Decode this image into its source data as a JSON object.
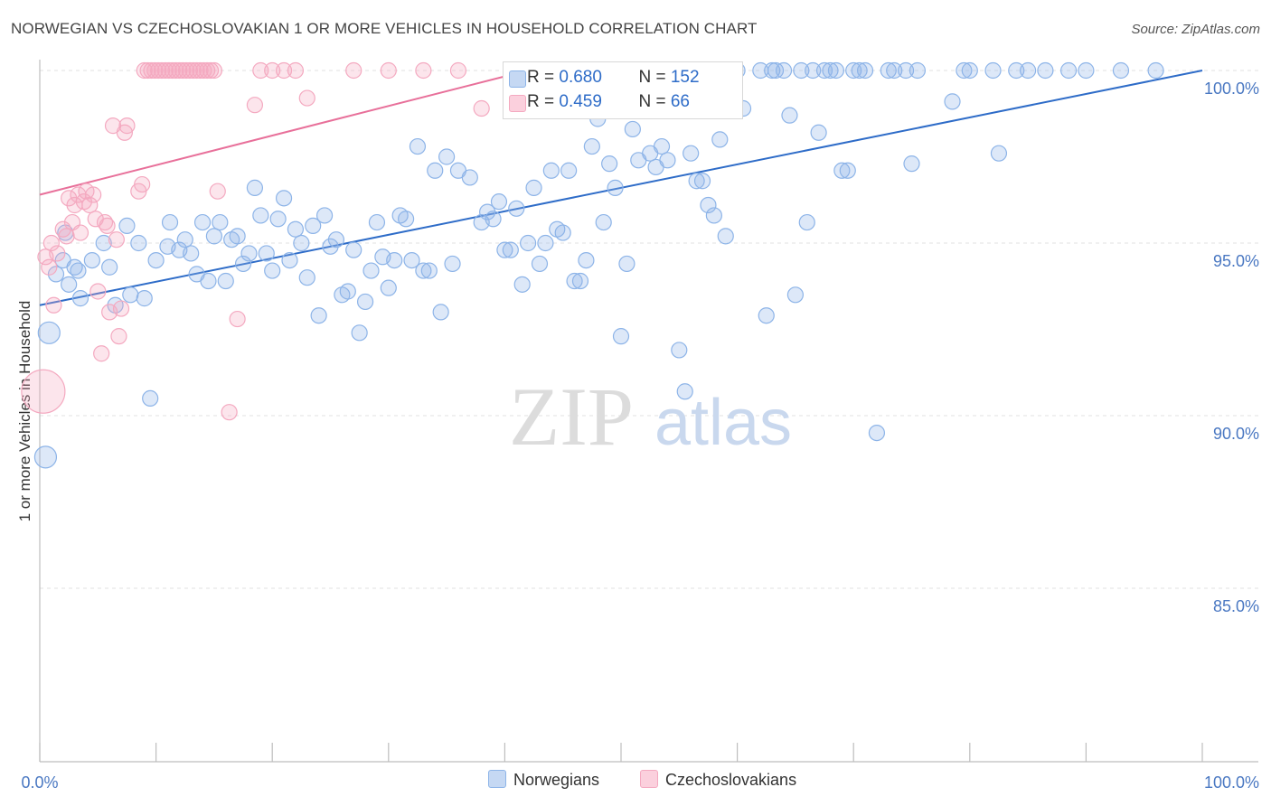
{
  "chart_data": {
    "type": "scatter",
    "title": "NORWEGIAN VS CZECHOSLOVAKIAN 1 OR MORE VEHICLES IN HOUSEHOLD CORRELATION CHART",
    "source": "Source: ZipAtlas.com",
    "xlabel": "",
    "ylabel": "1 or more Vehicles in Household",
    "xlim": [
      0,
      100
    ],
    "ylim": [
      80.5,
      100.8
    ],
    "x_tick_labels": [
      "0.0%",
      "100.0%"
    ],
    "y_ticks": [
      100,
      95,
      90,
      85
    ],
    "y_tick_labels": [
      "100.0%",
      "95.0%",
      "90.0%",
      "85.0%"
    ],
    "watermark": "ZIPatlas",
    "legend": {
      "rows": [
        {
          "r_label": "R = ",
          "r_value": "0.680",
          "n_label": "N = ",
          "n_value": "152"
        },
        {
          "r_label": "R = ",
          "r_value": "0.459",
          "n_label": "N = ",
          "n_value": "66"
        }
      ]
    },
    "series": [
      {
        "name": "Norwegians",
        "color": "#8db4e8",
        "line_color": "#2e6cc8",
        "trend": {
          "x": [
            0,
            100
          ],
          "y": [
            93.2,
            100.0
          ]
        },
        "points": [
          [
            0.5,
            88.8,
            2
          ],
          [
            0.8,
            92.4,
            2
          ],
          [
            1.4,
            94.1,
            1
          ],
          [
            2,
            94.5,
            1
          ],
          [
            2.2,
            95.3,
            1
          ],
          [
            2.5,
            93.8,
            1
          ],
          [
            3,
            94.3,
            1
          ],
          [
            3.3,
            94.2,
            1
          ],
          [
            3.5,
            93.4,
            1
          ],
          [
            4.5,
            94.5,
            1
          ],
          [
            5.5,
            95,
            1
          ],
          [
            6,
            94.3,
            1
          ],
          [
            6.5,
            93.2,
            1
          ],
          [
            7.5,
            95.5,
            1
          ],
          [
            7.8,
            93.5,
            1
          ],
          [
            8.5,
            95,
            1
          ],
          [
            9,
            93.4,
            1
          ],
          [
            9.5,
            90.5,
            1
          ],
          [
            10,
            94.5,
            1
          ],
          [
            11,
            94.9,
            1
          ],
          [
            11.2,
            95.6,
            1
          ],
          [
            12,
            94.8,
            1
          ],
          [
            12.5,
            95.1,
            1
          ],
          [
            13,
            94.7,
            1
          ],
          [
            13.5,
            94.1,
            1
          ],
          [
            14,
            95.6,
            1
          ],
          [
            14.5,
            93.9,
            1
          ],
          [
            15,
            95.2,
            1
          ],
          [
            15.5,
            95.6,
            1
          ],
          [
            16,
            93.9,
            1
          ],
          [
            16.5,
            95.1,
            1
          ],
          [
            17,
            95.2,
            1
          ],
          [
            17.5,
            94.4,
            1
          ],
          [
            18,
            94.7,
            1
          ],
          [
            18.5,
            96.6,
            1
          ],
          [
            19,
            95.8,
            1
          ],
          [
            19.5,
            94.7,
            1
          ],
          [
            20,
            94.2,
            1
          ],
          [
            20.5,
            95.7,
            1
          ],
          [
            21,
            96.3,
            1
          ],
          [
            21.5,
            94.5,
            1
          ],
          [
            22,
            95.4,
            1
          ],
          [
            22.5,
            95,
            1
          ],
          [
            23,
            94,
            1
          ],
          [
            23.5,
            95.5,
            1
          ],
          [
            24,
            92.9,
            1
          ],
          [
            24.5,
            95.8,
            1
          ],
          [
            25,
            94.9,
            1
          ],
          [
            25.5,
            95.1,
            1
          ],
          [
            26,
            93.5,
            1
          ],
          [
            26.5,
            93.6,
            1
          ],
          [
            27,
            94.8,
            1
          ],
          [
            27.5,
            92.4,
            1
          ],
          [
            28,
            93.3,
            1
          ],
          [
            28.5,
            94.2,
            1
          ],
          [
            29,
            95.6,
            1
          ],
          [
            29.5,
            94.6,
            1
          ],
          [
            30,
            93.7,
            1
          ],
          [
            30.5,
            94.5,
            1
          ],
          [
            31,
            95.8,
            1
          ],
          [
            31.5,
            95.7,
            1
          ],
          [
            32,
            94.5,
            1
          ],
          [
            32.5,
            97.8,
            1
          ],
          [
            33,
            94.2,
            1
          ],
          [
            33.5,
            94.2,
            1
          ],
          [
            34,
            97.1,
            1
          ],
          [
            34.5,
            93,
            1
          ],
          [
            35,
            97.5,
            1
          ],
          [
            35.5,
            94.4,
            1
          ],
          [
            36,
            97.1,
            1
          ],
          [
            37,
            96.9,
            1
          ],
          [
            38,
            95.6,
            1
          ],
          [
            38.5,
            95.9,
            1
          ],
          [
            39,
            95.7,
            1
          ],
          [
            39.5,
            96.2,
            1
          ],
          [
            40,
            94.8,
            1
          ],
          [
            40.5,
            94.8,
            1
          ],
          [
            41,
            96,
            1
          ],
          [
            41.5,
            93.8,
            1
          ],
          [
            42,
            95,
            1
          ],
          [
            42.5,
            96.6,
            1
          ],
          [
            43,
            94.4,
            1
          ],
          [
            43.5,
            95,
            1
          ],
          [
            44,
            97.1,
            1
          ],
          [
            44.5,
            95.4,
            1
          ],
          [
            45,
            95.3,
            1
          ],
          [
            45.5,
            97.1,
            1
          ],
          [
            46,
            93.9,
            1
          ],
          [
            46.5,
            93.9,
            1
          ],
          [
            47,
            94.5,
            1
          ],
          [
            47.5,
            97.8,
            1
          ],
          [
            48,
            98.6,
            1
          ],
          [
            48.5,
            95.6,
            1
          ],
          [
            49,
            97.3,
            1
          ],
          [
            49.5,
            96.6,
            1
          ],
          [
            50,
            92.3,
            1
          ],
          [
            50.5,
            94.4,
            1
          ],
          [
            51,
            98.3,
            1
          ],
          [
            51.5,
            97.4,
            1
          ],
          [
            52,
            99.8,
            1
          ],
          [
            52.5,
            97.6,
            1
          ],
          [
            53,
            97.2,
            1
          ],
          [
            53.5,
            97.8,
            1
          ],
          [
            54,
            97.4,
            1
          ],
          [
            55,
            91.9,
            1
          ],
          [
            55.5,
            90.7,
            1
          ],
          [
            56,
            97.6,
            1
          ],
          [
            56.5,
            96.8,
            1
          ],
          [
            57,
            96.8,
            1
          ],
          [
            57.5,
            96.1,
            1
          ],
          [
            58,
            95.8,
            1
          ],
          [
            58.5,
            98,
            1
          ],
          [
            59,
            95.2,
            1
          ],
          [
            60,
            100,
            1
          ],
          [
            60.5,
            98.9,
            1
          ],
          [
            62,
            100,
            1
          ],
          [
            62.5,
            92.9,
            1
          ],
          [
            63,
            100,
            1
          ],
          [
            63.3,
            100,
            1
          ],
          [
            64,
            100,
            1
          ],
          [
            64.5,
            98.7,
            1
          ],
          [
            65,
            93.5,
            1
          ],
          [
            65.5,
            100,
            1
          ],
          [
            66,
            95.6,
            1
          ],
          [
            66.5,
            100,
            1
          ],
          [
            67,
            98.2,
            1
          ],
          [
            67.5,
            100,
            1
          ],
          [
            68,
            100,
            1
          ],
          [
            68.5,
            100,
            1
          ],
          [
            69,
            97.1,
            1
          ],
          [
            69.5,
            97.1,
            1
          ],
          [
            70,
            100,
            1
          ],
          [
            70.5,
            100,
            1
          ],
          [
            71,
            100,
            1
          ],
          [
            72,
            89.5,
            1
          ],
          [
            73,
            100,
            1
          ],
          [
            73.5,
            100,
            1
          ],
          [
            74.5,
            100,
            1
          ],
          [
            75,
            97.3,
            1
          ],
          [
            75.5,
            100,
            1
          ],
          [
            78.5,
            99.1,
            1
          ],
          [
            79.5,
            100,
            1
          ],
          [
            80,
            100,
            1
          ],
          [
            82,
            100,
            1
          ],
          [
            82.5,
            97.6,
            1
          ],
          [
            84,
            100,
            1
          ],
          [
            85,
            100,
            1
          ],
          [
            86.5,
            100,
            1
          ],
          [
            88.5,
            100,
            1
          ],
          [
            90,
            100,
            1
          ],
          [
            93,
            100,
            1
          ],
          [
            96,
            100,
            1
          ]
        ]
      },
      {
        "name": "Czechoslovakians",
        "color": "#f4a9c0",
        "line_color": "#e8709a",
        "trend": {
          "x": [
            0,
            42
          ],
          "y": [
            96.4,
            100.0
          ]
        },
        "points": [
          [
            0.3,
            90.7,
            3
          ],
          [
            0.5,
            94.6,
            1
          ],
          [
            0.8,
            94.3,
            1
          ],
          [
            1,
            95,
            1
          ],
          [
            1.2,
            93.2,
            1
          ],
          [
            1.5,
            94.7,
            1
          ],
          [
            2,
            95.4,
            1
          ],
          [
            2.3,
            95.2,
            1
          ],
          [
            2.5,
            96.3,
            1
          ],
          [
            2.8,
            95.6,
            1
          ],
          [
            3,
            96.1,
            1
          ],
          [
            3.3,
            96.4,
            1
          ],
          [
            3.5,
            95.3,
            1
          ],
          [
            3.8,
            96.2,
            1
          ],
          [
            4,
            96.5,
            1
          ],
          [
            4.3,
            96.1,
            1
          ],
          [
            4.6,
            96.4,
            1
          ],
          [
            4.8,
            95.7,
            1
          ],
          [
            5,
            93.6,
            1
          ],
          [
            5.3,
            91.8,
            1
          ],
          [
            5.6,
            95.6,
            1
          ],
          [
            5.8,
            95.5,
            1
          ],
          [
            6,
            93,
            1
          ],
          [
            6.3,
            98.4,
            1
          ],
          [
            6.6,
            95.1,
            1
          ],
          [
            6.8,
            92.3,
            1
          ],
          [
            7,
            93.1,
            1
          ],
          [
            7.3,
            98.2,
            1
          ],
          [
            7.5,
            98.4,
            1
          ],
          [
            8.5,
            96.5,
            1
          ],
          [
            8.8,
            96.7,
            1
          ],
          [
            9,
            100,
            1
          ],
          [
            9.3,
            100,
            1
          ],
          [
            9.6,
            100,
            1
          ],
          [
            9.9,
            100,
            1
          ],
          [
            10.2,
            100,
            1
          ],
          [
            10.5,
            100,
            1
          ],
          [
            10.8,
            100,
            1
          ],
          [
            11.1,
            100,
            1
          ],
          [
            11.4,
            100,
            1
          ],
          [
            11.7,
            100,
            1
          ],
          [
            12,
            100,
            1
          ],
          [
            12.3,
            100,
            1
          ],
          [
            12.6,
            100,
            1
          ],
          [
            12.9,
            100,
            1
          ],
          [
            13.2,
            100,
            1
          ],
          [
            13.5,
            100,
            1
          ],
          [
            13.8,
            100,
            1
          ],
          [
            14.1,
            100,
            1
          ],
          [
            14.4,
            100,
            1
          ],
          [
            14.7,
            100,
            1
          ],
          [
            15,
            100,
            1
          ],
          [
            15.3,
            96.5,
            1
          ],
          [
            16.3,
            90.1,
            1
          ],
          [
            17,
            92.8,
            1
          ],
          [
            18.5,
            99,
            1
          ],
          [
            19,
            100,
            1
          ],
          [
            20,
            100,
            1
          ],
          [
            21,
            100,
            1
          ],
          [
            22,
            100,
            1
          ],
          [
            23,
            99.2,
            1
          ],
          [
            27,
            100,
            1
          ],
          [
            30,
            100,
            1
          ],
          [
            33,
            100,
            1
          ],
          [
            36,
            100,
            1
          ],
          [
            38,
            98.9,
            1
          ]
        ]
      }
    ]
  }
}
